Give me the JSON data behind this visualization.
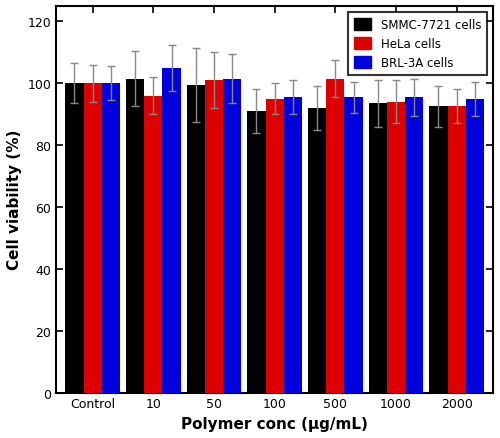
{
  "categories": [
    "Control",
    "10",
    "50",
    "100",
    "500",
    "1000",
    "2000"
  ],
  "smmc_values": [
    100.0,
    101.5,
    99.5,
    91.0,
    92.0,
    93.5,
    92.5
  ],
  "hela_values": [
    100.0,
    96.0,
    101.0,
    95.0,
    101.5,
    94.0,
    92.5
  ],
  "brl_values": [
    100.0,
    105.0,
    101.5,
    95.5,
    95.5,
    95.5,
    95.0
  ],
  "smmc_err": [
    6.5,
    9.0,
    12.0,
    7.0,
    7.0,
    7.5,
    6.5
  ],
  "hela_err": [
    6.0,
    6.0,
    9.0,
    5.0,
    6.0,
    7.0,
    5.5
  ],
  "brl_err": [
    5.5,
    7.5,
    8.0,
    5.5,
    5.0,
    6.0,
    5.5
  ],
  "bar_colors": [
    "#000000",
    "#dd0000",
    "#0000dd"
  ],
  "legend_labels": [
    "SMMC-7721 cells",
    "HeLa cells",
    "BRL-3A cells"
  ],
  "xlabel": "Polymer conc (μg/mL)",
  "ylabel": "Cell viability (%)",
  "ylim": [
    0,
    125
  ],
  "yticks": [
    0,
    20,
    40,
    60,
    80,
    100,
    120
  ],
  "bar_width": 0.3,
  "background_color": "#ffffff",
  "axes_linewidth": 1.5,
  "legend_fontsize": 8.5,
  "axis_label_fontsize": 11,
  "tick_fontsize": 9
}
